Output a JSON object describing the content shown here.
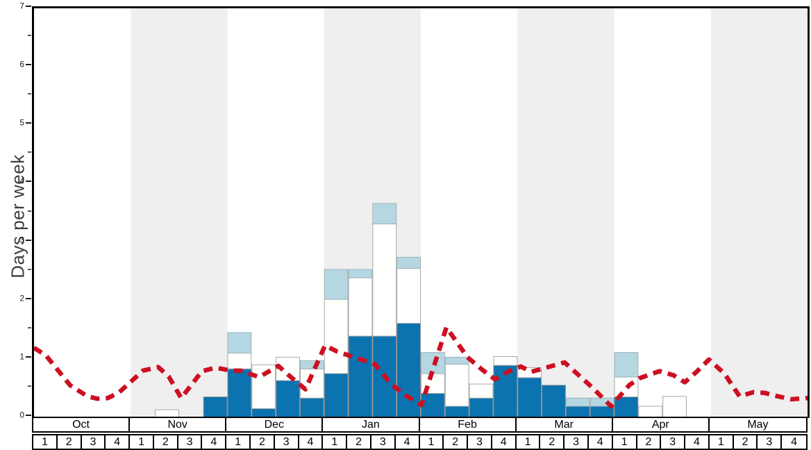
{
  "chart_data": {
    "type": "bar",
    "subtype": "stacked-weekly-bars-with-dashed-average-line",
    "ylabel": "Days per week",
    "ylim": [
      0,
      7
    ],
    "y_major_ticks": [
      "0",
      "1",
      "2",
      "3",
      "4",
      "5",
      "6",
      "7"
    ],
    "y_minor_tick_step": 0.5,
    "grid": "off",
    "shaded_band_color": "#efefef",
    "months": [
      {
        "label": "Oct",
        "shaded": false,
        "weeks": [
          "1",
          "2",
          "3",
          "4"
        ]
      },
      {
        "label": "Nov",
        "shaded": true,
        "weeks": [
          "1",
          "2",
          "3",
          "4"
        ]
      },
      {
        "label": "Dec",
        "shaded": false,
        "weeks": [
          "1",
          "2",
          "3",
          "4"
        ]
      },
      {
        "label": "Jan",
        "shaded": true,
        "weeks": [
          "1",
          "2",
          "3",
          "4"
        ]
      },
      {
        "label": "Feb",
        "shaded": false,
        "weeks": [
          "1",
          "2",
          "3",
          "4"
        ]
      },
      {
        "label": "Mar",
        "shaded": true,
        "weeks": [
          "1",
          "2",
          "3",
          "4"
        ]
      },
      {
        "label": "Apr",
        "shaded": false,
        "weeks": [
          "1",
          "2",
          "3",
          "4"
        ]
      },
      {
        "label": "May",
        "shaded": true,
        "weeks": [
          "1",
          "2",
          "3",
          "4"
        ]
      }
    ],
    "bar_series": [
      {
        "name": "snow-days-dark-blue",
        "color": "#0a73b0",
        "stroke": "#8f8f8f",
        "values": [
          0,
          0,
          0,
          0,
          0,
          0,
          0,
          0.35,
          0.83,
          0.15,
          0.63,
          0.33,
          0.75,
          1.39,
          1.39,
          1.61,
          0.41,
          0.19,
          0.33,
          0.89,
          0.68,
          0.55,
          0.19,
          0.19,
          0.35,
          0,
          0,
          0,
          0,
          0,
          0,
          0
        ]
      },
      {
        "name": "snow-days-white",
        "color": "#fffffe",
        "stroke": "#a8a8a8",
        "values": [
          0,
          0,
          0,
          0,
          0,
          0.13,
          0,
          0,
          0.27,
          0.75,
          0.4,
          0.5,
          1.27,
          1.0,
          1.92,
          0.94,
          0.34,
          0.72,
          0.24,
          0.15,
          0.17,
          0,
          0,
          0,
          0.34,
          0.19,
          0.36,
          0,
          0,
          0,
          0,
          0
        ]
      },
      {
        "name": "snow-days-light-blue",
        "color": "#b5d7e1",
        "stroke": "#9fb0b8",
        "values": [
          0,
          0,
          0,
          0,
          0,
          0,
          0,
          0,
          0.35,
          0,
          0,
          0.14,
          0.51,
          0.14,
          0.35,
          0.19,
          0.36,
          0.12,
          0,
          0,
          0,
          0,
          0.14,
          0.14,
          0.42,
          0,
          0,
          0,
          0,
          0,
          0,
          0
        ]
      }
    ],
    "line_series": {
      "name": "red-dashed-line",
      "color": "#cc1022",
      "width": 6.5,
      "dash": [
        13,
        9
      ],
      "points": [
        [
          0,
          1.19
        ],
        [
          0.49,
          1.06
        ],
        [
          1.49,
          0.55
        ],
        [
          2.21,
          0.36
        ],
        [
          2.61,
          0.32
        ],
        [
          3.05,
          0.33
        ],
        [
          3.5,
          0.42
        ],
        [
          4.51,
          0.8
        ],
        [
          5.14,
          0.86
        ],
        [
          5.57,
          0.7
        ],
        [
          6.09,
          0.33
        ],
        [
          6.95,
          0.79
        ],
        [
          7.5,
          0.85
        ],
        [
          8.16,
          0.8
        ],
        [
          8.53,
          0.8
        ],
        [
          9.31,
          0.69
        ],
        [
          10.11,
          0.88
        ],
        [
          10.54,
          0.72
        ],
        [
          11.23,
          0.48
        ],
        [
          12.04,
          1.23
        ],
        [
          12.52,
          1.13
        ],
        [
          13.53,
          0.99
        ],
        [
          14.1,
          0.91
        ],
        [
          14.77,
          0.57
        ],
        [
          15.43,
          0.36
        ],
        [
          16.03,
          0.21
        ],
        [
          17.06,
          1.54
        ],
        [
          17.93,
          1.03
        ],
        [
          18.5,
          0.83
        ],
        [
          19.07,
          0.65
        ],
        [
          19.65,
          0.79
        ],
        [
          20.14,
          0.87
        ],
        [
          20.57,
          0.78
        ],
        [
          21.95,
          0.94
        ],
        [
          23.1,
          0.51
        ],
        [
          23.87,
          0.19
        ],
        [
          24.62,
          0.55
        ],
        [
          25.05,
          0.67
        ],
        [
          25.88,
          0.79
        ],
        [
          26.46,
          0.72
        ],
        [
          26.92,
          0.6
        ],
        [
          27.41,
          0.78
        ],
        [
          27.92,
          0.99
        ],
        [
          28.56,
          0.75
        ],
        [
          29.19,
          0.36
        ],
        [
          29.76,
          0.43
        ],
        [
          30.22,
          0.42
        ],
        [
          30.77,
          0.36
        ],
        [
          31.34,
          0.31
        ],
        [
          32,
          0.33
        ]
      ]
    }
  }
}
